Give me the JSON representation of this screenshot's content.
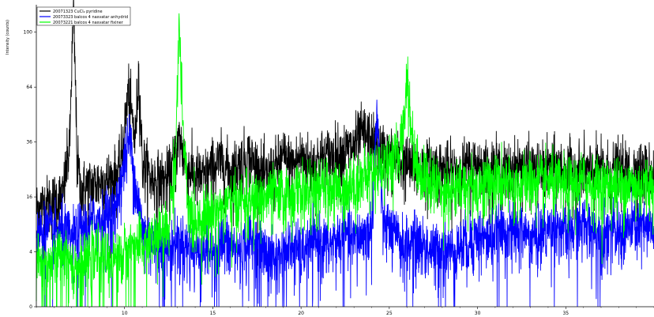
{
  "chart_data": {
    "type": "line",
    "title": "",
    "xlabel": "",
    "ylabel": "Intensity (counts)",
    "xlim": [
      5,
      40
    ],
    "ylim": [
      0,
      121
    ],
    "y_scale": "sqrt",
    "x_ticks": [
      10,
      15,
      20,
      25,
      30,
      35
    ],
    "y_ticks": [
      0,
      4,
      16,
      36,
      64,
      100
    ],
    "grid": false,
    "legend_position": "top-left",
    "series": [
      {
        "name": "20071323 CuCl₂ pyridine",
        "color": "#000000",
        "x": [
          5.0,
          5.5,
          6.0,
          6.5,
          6.9,
          7.1,
          7.3,
          7.5,
          7.8,
          8.3,
          8.8,
          9.3,
          9.7,
          10.0,
          10.2,
          10.6,
          10.8,
          11.0,
          11.5,
          12.0,
          12.5,
          12.9,
          13.1,
          13.5,
          14.0,
          14.5,
          15.0,
          15.5,
          16.0,
          16.5,
          17.0,
          17.5,
          18.0,
          18.5,
          19.0,
          19.5,
          20.0,
          20.5,
          21.0,
          21.5,
          22.0,
          22.5,
          23.0,
          23.5,
          24.0,
          24.5,
          25.0,
          25.5,
          26.0,
          26.5,
          27.0,
          27.5,
          28.0,
          28.5,
          29.0,
          29.5,
          30.0,
          30.5,
          31.0,
          31.5,
          32.0,
          32.5,
          33.0,
          33.5,
          34.0,
          34.5,
          35.0,
          35.5,
          36.0,
          36.5,
          37.0,
          37.5,
          38.0,
          38.5,
          39.0,
          39.5
        ],
        "values": [
          13,
          14,
          15,
          16,
          35,
          115,
          30,
          18,
          19,
          20,
          21,
          22,
          24,
          40,
          62,
          36,
          72,
          28,
          22,
          21,
          22,
          30,
          38,
          26,
          23,
          22,
          26,
          28,
          24,
          27,
          30,
          26,
          22,
          25,
          30,
          26,
          30,
          27,
          29,
          30,
          31,
          32,
          34,
          40,
          36,
          32,
          30,
          28,
          27,
          26,
          25,
          26,
          25,
          24,
          25,
          26,
          27,
          25,
          26,
          24,
          25,
          26,
          25,
          24,
          25,
          26,
          25,
          24,
          25,
          24,
          25,
          24,
          25,
          24,
          25,
          24
        ]
      },
      {
        "name": "20073323 balcos 4 nasvatar anhydrid",
        "color": "#0000ff",
        "x": [
          5.0,
          5.5,
          6.0,
          6.5,
          7.0,
          7.5,
          8.0,
          8.5,
          9.0,
          9.5,
          10.0,
          10.3,
          10.6,
          11.0,
          11.5,
          12.0,
          12.5,
          13.0,
          13.5,
          14.0,
          14.5,
          15.0,
          15.5,
          16.0,
          16.5,
          17.0,
          17.5,
          18.0,
          18.5,
          19.0,
          19.5,
          20.0,
          20.5,
          21.0,
          21.5,
          22.0,
          22.5,
          23.0,
          23.5,
          24.0,
          24.3,
          24.6,
          25.0,
          25.5,
          26.0,
          26.5,
          27.0,
          27.5,
          28.0,
          28.5,
          29.0,
          29.5,
          30.0,
          30.5,
          31.0,
          31.5,
          32.0,
          32.5,
          33.0,
          33.5,
          34.0,
          34.5,
          35.0,
          35.5,
          36.0,
          36.5,
          37.0,
          37.5,
          38.0,
          38.5,
          39.0,
          39.5
        ],
        "values": [
          7,
          8,
          7,
          8,
          6,
          8,
          9,
          10,
          11,
          12,
          28,
          38,
          20,
          8,
          6,
          5,
          4,
          6,
          5,
          4,
          5,
          4,
          6,
          5,
          4,
          6,
          5,
          4,
          3,
          4,
          5,
          4,
          5,
          6,
          5,
          6,
          7,
          6,
          7,
          8,
          48,
          10,
          8,
          6,
          5,
          6,
          5,
          4,
          5,
          4,
          5,
          6,
          7,
          6,
          7,
          8,
          7,
          8,
          6,
          7,
          8,
          9,
          7,
          8,
          9,
          8,
          7,
          8,
          7,
          8,
          9,
          8
        ]
      },
      {
        "name": "20073221 balcos 4 nasvatar fixiner",
        "color": "#00ff00",
        "x": [
          5.0,
          5.5,
          6.0,
          6.5,
          7.0,
          7.5,
          8.0,
          8.5,
          9.0,
          9.5,
          10.0,
          10.5,
          11.0,
          11.5,
          12.0,
          12.5,
          12.9,
          13.1,
          13.3,
          13.6,
          14.0,
          14.5,
          15.0,
          15.5,
          16.0,
          16.5,
          17.0,
          17.5,
          18.0,
          18.5,
          19.0,
          19.5,
          20.0,
          20.5,
          21.0,
          21.5,
          22.0,
          22.5,
          23.0,
          23.5,
          24.0,
          24.5,
          25.0,
          25.5,
          25.8,
          26.0,
          26.2,
          26.5,
          27.0,
          27.5,
          28.0,
          28.5,
          29.0,
          29.5,
          30.0,
          30.5,
          31.0,
          31.5,
          32.0,
          32.5,
          33.0,
          33.5,
          34.0,
          34.5,
          35.0,
          35.5,
          36.0,
          36.5,
          37.0,
          37.5,
          38.0,
          38.5,
          39.0,
          39.5
        ],
        "values": [
          3,
          2,
          3,
          4,
          3,
          2,
          3,
          4,
          3,
          3,
          4,
          5,
          5,
          6,
          7,
          8,
          30,
          105,
          40,
          12,
          10,
          11,
          12,
          13,
          14,
          15,
          14,
          15,
          16,
          17,
          16,
          17,
          18,
          17,
          18,
          19,
          18,
          19,
          20,
          22,
          24,
          26,
          28,
          30,
          42,
          72,
          45,
          28,
          22,
          20,
          19,
          18,
          19,
          20,
          19,
          20,
          21,
          20,
          19,
          20,
          21,
          20,
          21,
          20,
          19,
          20,
          21,
          20,
          19,
          20,
          19,
          20,
          19,
          20
        ]
      }
    ]
  }
}
